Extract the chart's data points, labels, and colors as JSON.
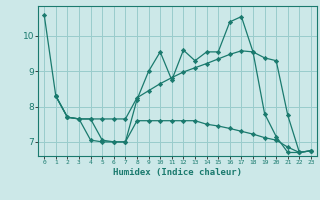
{
  "xlabel": "Humidex (Indice chaleur)",
  "background_color": "#cce8e8",
  "grid_color": "#99cccc",
  "line_color": "#1a7a6e",
  "xlim": [
    -0.5,
    23.5
  ],
  "ylim": [
    6.6,
    10.85
  ],
  "yticks": [
    7,
    8,
    9,
    10
  ],
  "xtick_labels": [
    "0",
    "1",
    "2",
    "3",
    "4",
    "5",
    "6",
    "7",
    "8",
    "9",
    "10",
    "11",
    "12",
    "13",
    "14",
    "15",
    "16",
    "17",
    "18",
    "19",
    "20",
    "21",
    "22",
    "23"
  ],
  "line1_x": [
    0,
    1,
    2,
    3,
    4,
    5,
    6,
    7,
    8,
    9,
    10,
    11,
    12,
    13,
    14,
    15,
    16,
    17,
    18,
    19,
    20,
    21,
    22,
    23
  ],
  "line1_y": [
    10.6,
    8.3,
    7.7,
    7.65,
    7.05,
    7.0,
    7.0,
    7.0,
    8.2,
    9.0,
    9.55,
    8.75,
    9.6,
    9.3,
    9.55,
    9.55,
    10.4,
    10.55,
    9.55,
    7.8,
    7.15,
    6.7,
    6.7,
    6.75
  ],
  "line2_x": [
    1,
    2,
    3,
    4,
    5,
    6,
    7,
    8,
    9,
    10,
    11,
    12,
    13,
    14,
    15,
    16,
    17,
    18,
    19,
    20,
    21,
    22,
    23
  ],
  "line2_y": [
    8.3,
    7.7,
    7.65,
    7.65,
    7.65,
    7.65,
    7.65,
    8.25,
    8.45,
    8.65,
    8.82,
    8.98,
    9.1,
    9.22,
    9.35,
    9.48,
    9.58,
    9.55,
    9.38,
    9.3,
    7.75,
    6.7,
    6.75
  ],
  "line3_x": [
    1,
    2,
    3,
    4,
    5,
    6,
    7,
    8,
    9,
    10,
    11,
    12,
    13,
    14,
    15,
    16,
    17,
    18,
    19,
    20,
    21,
    22,
    23
  ],
  "line3_y": [
    8.3,
    7.7,
    7.65,
    7.65,
    7.05,
    7.0,
    7.0,
    7.6,
    7.6,
    7.6,
    7.6,
    7.6,
    7.6,
    7.5,
    7.45,
    7.38,
    7.3,
    7.22,
    7.12,
    7.05,
    6.85,
    6.7,
    6.75
  ]
}
